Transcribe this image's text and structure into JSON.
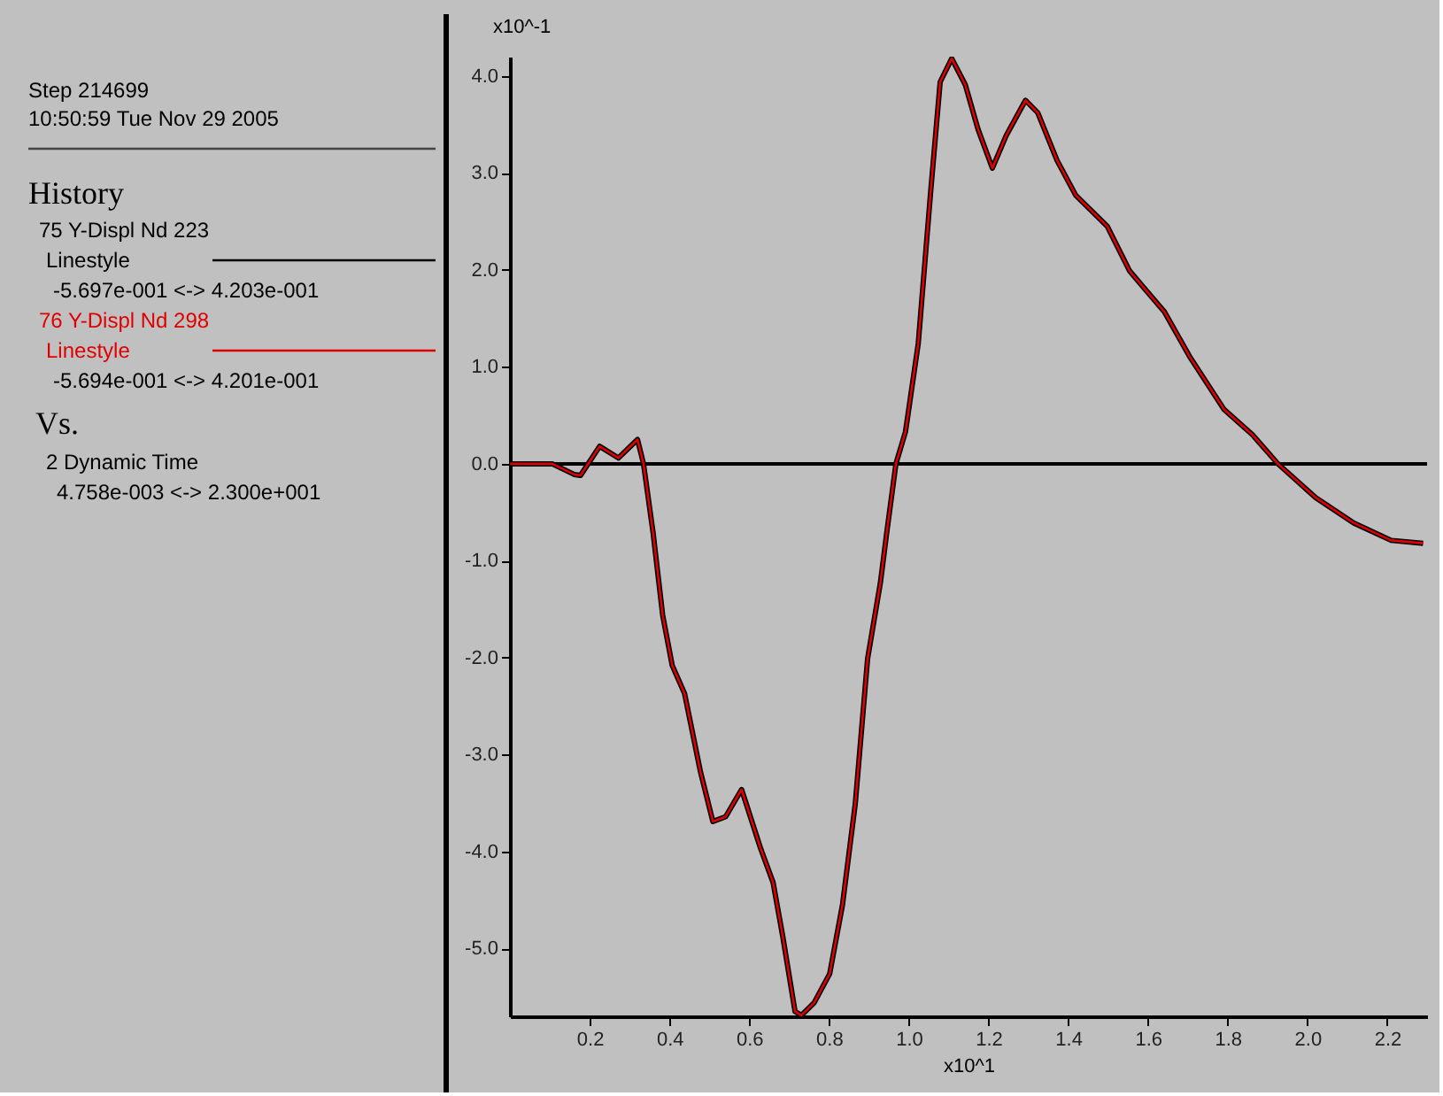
{
  "chart_data": {
    "type": "line",
    "xlabel": "x10^1",
    "ylabel": "x10^-1",
    "legend_title": "History",
    "annotations": [
      "Step 214699",
      "10:50:59 Tue Nov 29 2005",
      "Linestyle",
      "-5.697e-001 <-> 4.203e-001",
      "-5.694e-001 <-> 4.201e-001",
      "Vs.",
      "2 Dynamic Time",
      "4.758e-003 <-> 2.300e+001"
    ],
    "x": [
      0.0005,
      0.106,
      0.161,
      0.177,
      0.225,
      0.272,
      0.32,
      0.335,
      0.359,
      0.383,
      0.407,
      0.438,
      0.478,
      0.509,
      0.541,
      0.581,
      0.628,
      0.66,
      0.684,
      0.715,
      0.731,
      0.763,
      0.802,
      0.834,
      0.866,
      0.897,
      0.929,
      0.945,
      0.968,
      0.992,
      1.024,
      1.055,
      1.079,
      1.108,
      1.142,
      1.174,
      1.21,
      1.245,
      1.293,
      1.324,
      1.372,
      1.419,
      1.498,
      1.554,
      1.593,
      1.641,
      1.704,
      1.791,
      1.862,
      1.926,
      2.021,
      2.116,
      2.21,
      2.29
    ],
    "series": [
      {
        "name": "75 Y-Displ Nd 223",
        "color": "#000000",
        "values": [
          0,
          0,
          -0.11,
          -0.12,
          0.18,
          0.06,
          0.25,
          0.0,
          -0.71,
          -1.56,
          -2.08,
          -2.37,
          -3.18,
          -3.69,
          -3.64,
          -3.36,
          -3.96,
          -4.32,
          -4.87,
          -5.65,
          -5.69,
          -5.56,
          -5.26,
          -4.55,
          -3.51,
          -2.01,
          -1.23,
          -0.71,
          0,
          0.33,
          1.24,
          2.8,
          3.94,
          4.18,
          3.91,
          3.45,
          3.05,
          3.39,
          3.75,
          3.62,
          3.13,
          2.77,
          2.45,
          1.99,
          1.8,
          1.57,
          1.11,
          0.56,
          0.3,
          0,
          -0.35,
          -0.61,
          -0.79,
          -0.82
        ]
      },
      {
        "name": "76 Y-Displ Nd 298",
        "color": "#e00000",
        "values": [
          0,
          0,
          -0.11,
          -0.12,
          0.18,
          0.06,
          0.25,
          0.0,
          -0.71,
          -1.56,
          -2.08,
          -2.37,
          -3.18,
          -3.69,
          -3.64,
          -3.36,
          -3.96,
          -4.32,
          -4.87,
          -5.65,
          -5.69,
          -5.56,
          -5.26,
          -4.55,
          -3.51,
          -2.01,
          -1.23,
          -0.71,
          0,
          0.33,
          1.24,
          2.8,
          3.94,
          4.18,
          3.91,
          3.45,
          3.05,
          3.39,
          3.75,
          3.62,
          3.13,
          2.77,
          2.45,
          1.99,
          1.8,
          1.57,
          1.11,
          0.56,
          0.3,
          0,
          -0.35,
          -0.61,
          -0.79,
          -0.82
        ]
      }
    ],
    "xlim": [
      0,
      2.3
    ],
    "xticks": [
      {
        "value": 0.2,
        "label": "0.2"
      },
      {
        "value": 0.4,
        "label": "0.4"
      },
      {
        "value": 0.6,
        "label": "0.6"
      },
      {
        "value": 0.8,
        "label": "0.8"
      },
      {
        "value": 1.0,
        "label": "1.0"
      },
      {
        "value": 1.2,
        "label": "1.2"
      },
      {
        "value": 1.4,
        "label": "1.4"
      },
      {
        "value": 1.6,
        "label": "1.6"
      },
      {
        "value": 1.8,
        "label": "1.8"
      },
      {
        "value": 2.0,
        "label": "2.0"
      },
      {
        "value": 2.2,
        "label": "2.2"
      }
    ],
    "ylim": [
      -5.7,
      4.2
    ],
    "yticks": [
      {
        "value": -5,
        "label": "-5.0"
      },
      {
        "value": -4,
        "label": "-4.0"
      },
      {
        "value": -3,
        "label": "-3.0"
      },
      {
        "value": -2,
        "label": "-2.0"
      },
      {
        "value": -1,
        "label": "-1.0"
      },
      {
        "value": 0,
        "label": "0.0"
      },
      {
        "value": 1,
        "label": "1.0"
      },
      {
        "value": 2,
        "label": "2.0"
      },
      {
        "value": 3,
        "label": "3.0"
      },
      {
        "value": 4,
        "label": "4.0"
      }
    ],
    "ref_lines": [
      {
        "axis": "y",
        "value": 0,
        "color": "#000000"
      }
    ],
    "grid": false,
    "legend": "left",
    "marker": "none",
    "line_style": "solid"
  }
}
